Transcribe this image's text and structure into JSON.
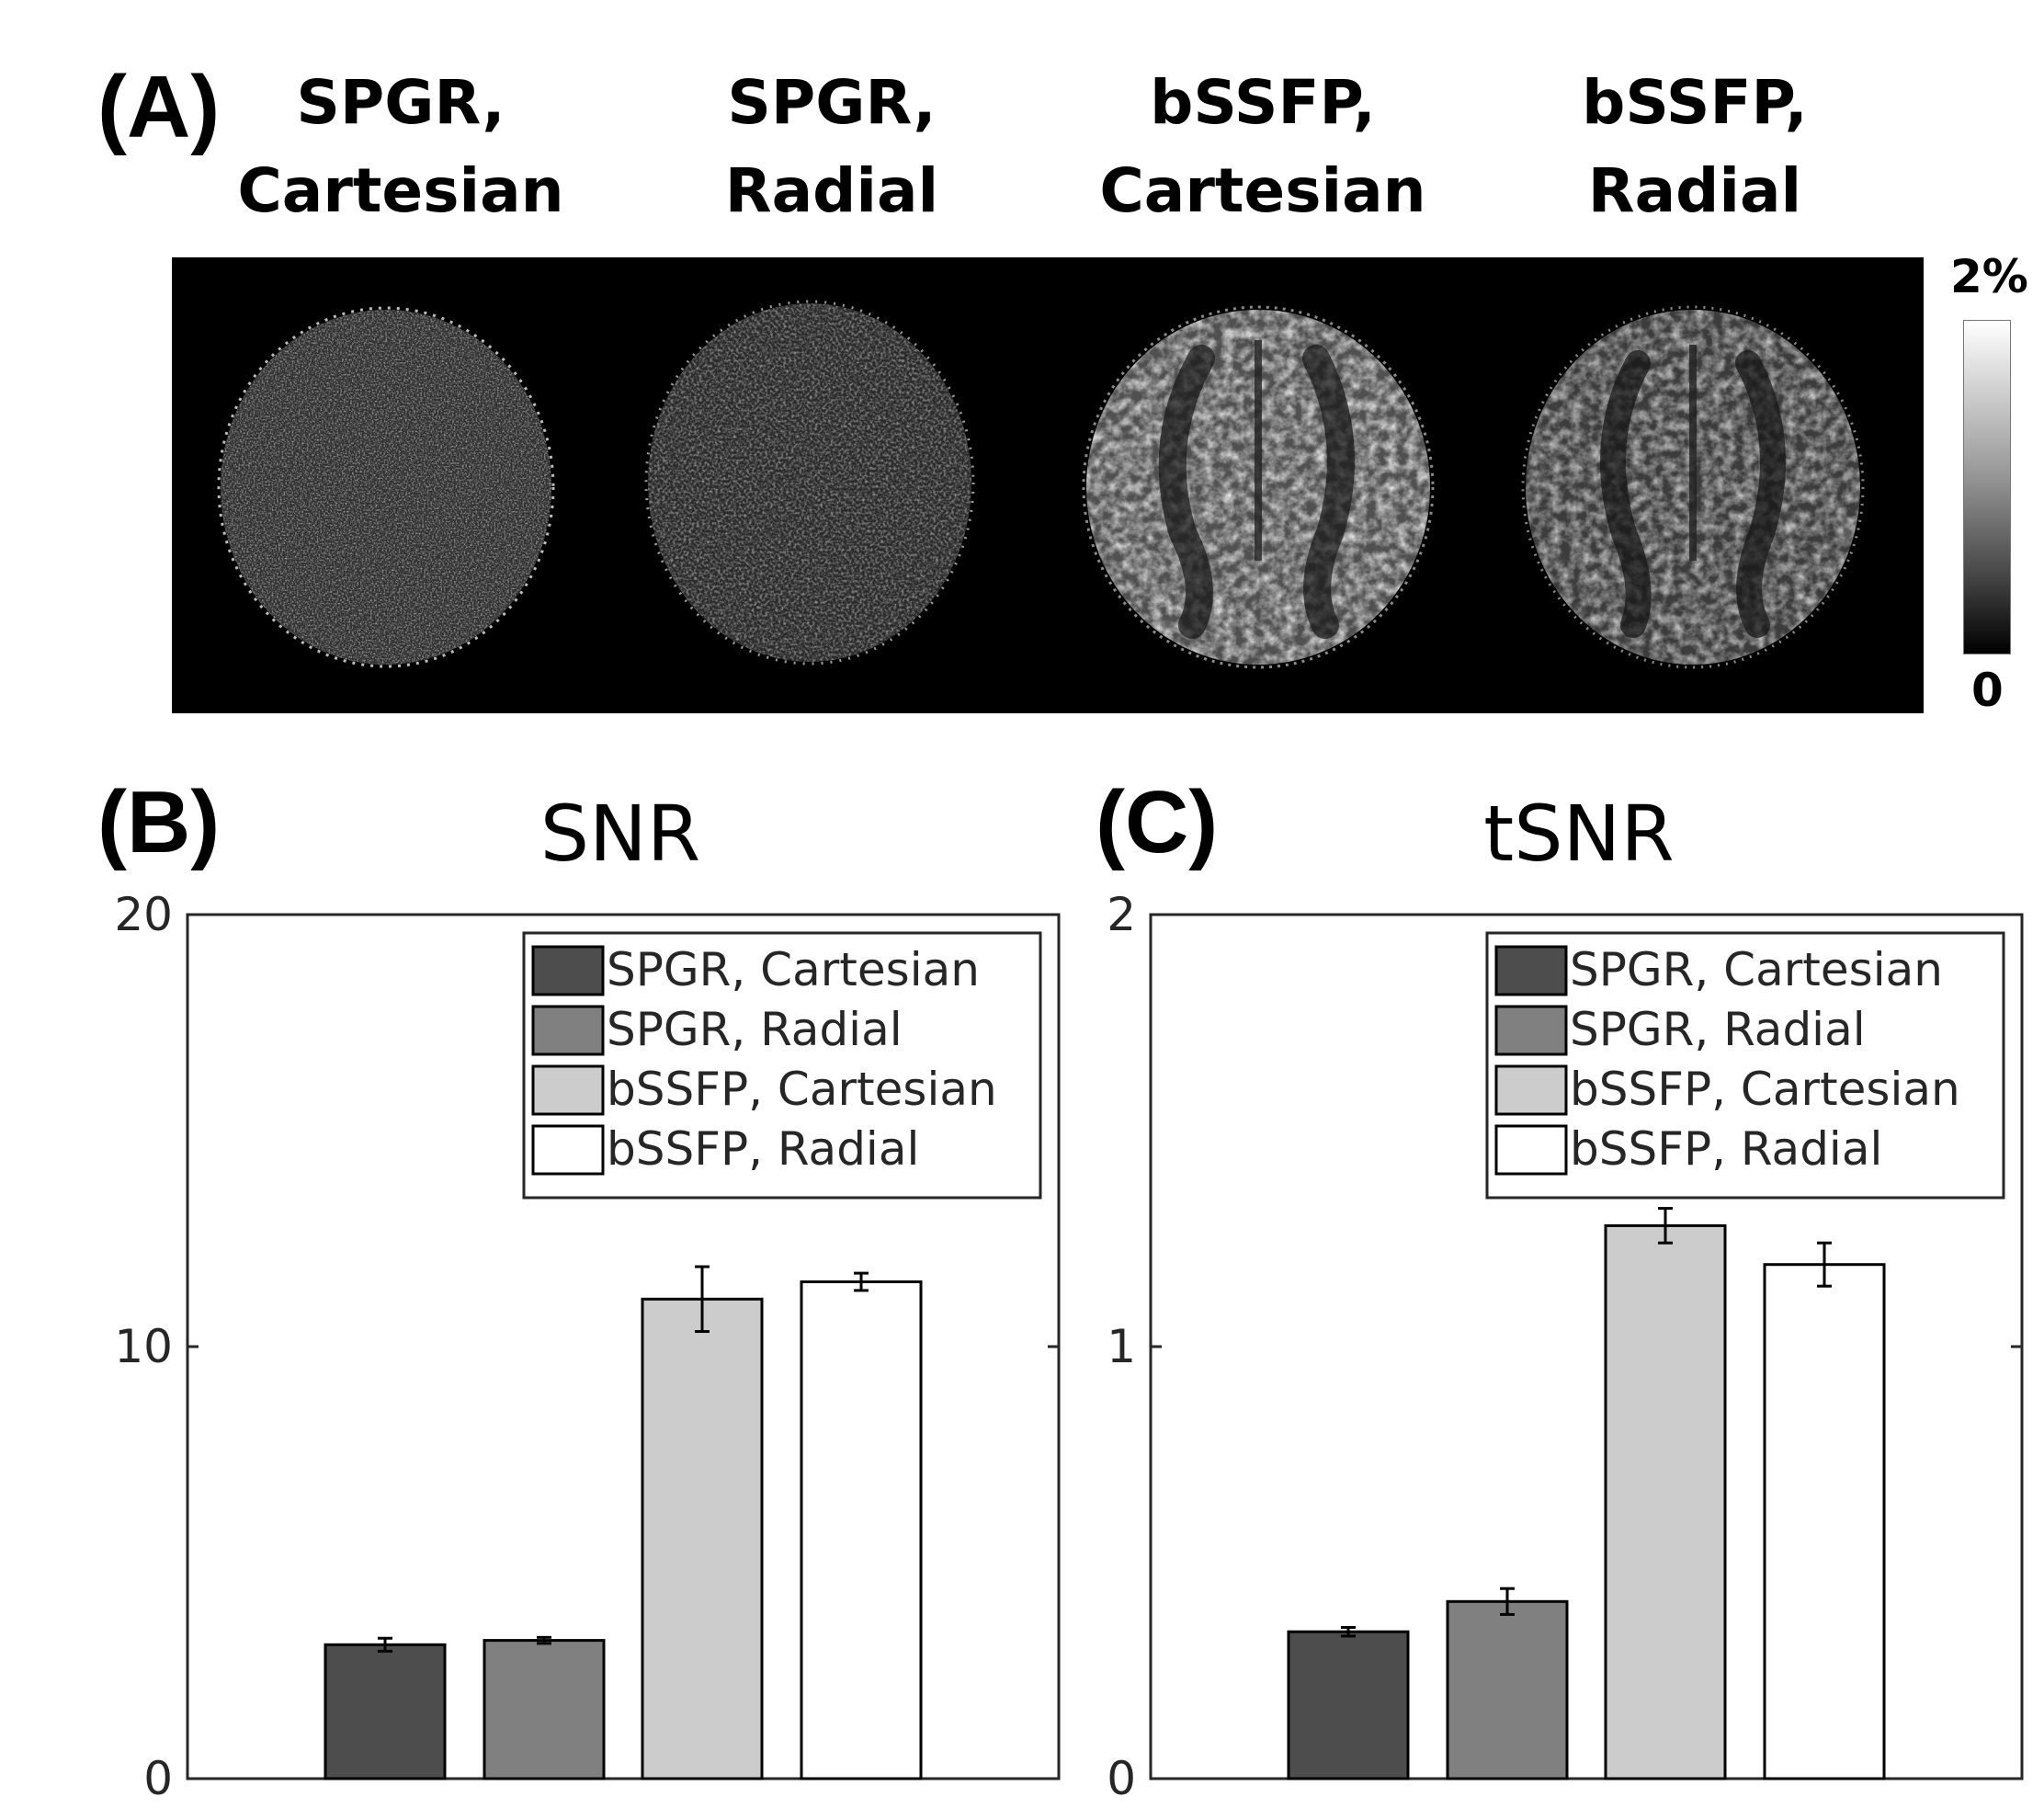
{
  "panel_a": {
    "label": "(A)",
    "columns": [
      {
        "line1": "SPGR,",
        "line2": "Cartesian"
      },
      {
        "line1": "SPGR,",
        "line2": "Radial"
      },
      {
        "line1": "bSSFP,",
        "line2": "Cartesian"
      },
      {
        "line1": "bSSFP,",
        "line2": "Radial"
      }
    ],
    "colorbar": {
      "max_label": "2%",
      "min_label": "0"
    }
  },
  "panel_b": {
    "label": "(B)"
  },
  "panel_c": {
    "label": "(C)"
  },
  "colors": {
    "spgr_cartesian": "#4d4d4d",
    "spgr_radial": "#808080",
    "bssfp_cartesian": "#cccccc",
    "bssfp_radial": "#ffffff"
  },
  "chart_data": [
    {
      "type": "bar",
      "title": "SNR",
      "categories": [
        "SPGR, Cartesian",
        "SPGR, Radial",
        "bSSFP, Cartesian",
        "bSSFP, Radial"
      ],
      "values": [
        3.1,
        3.2,
        11.1,
        11.5
      ],
      "errors": [
        0.15,
        0.07,
        0.75,
        0.2
      ],
      "ylim": [
        0,
        20
      ],
      "yticks": [
        "0",
        "10",
        "20"
      ],
      "legend": [
        "SPGR, Cartesian",
        "SPGR, Radial",
        "bSSFP, Cartesian",
        "bSSFP, Radial"
      ],
      "legend_position": "top-right",
      "xlabel": "",
      "ylabel": ""
    },
    {
      "type": "bar",
      "title": "tSNR",
      "categories": [
        "SPGR, Cartesian",
        "SPGR, Radial",
        "bSSFP, Cartesian",
        "bSSFP, Radial"
      ],
      "values": [
        0.34,
        0.41,
        1.28,
        1.19
      ],
      "errors": [
        0.01,
        0.03,
        0.04,
        0.05
      ],
      "ylim": [
        0,
        2
      ],
      "yticks": [
        "0",
        "1",
        "2"
      ],
      "legend": [
        "SPGR, Cartesian",
        "SPGR, Radial",
        "bSSFP, Cartesian",
        "bSSFP, Radial"
      ],
      "legend_position": "top-right",
      "xlabel": "",
      "ylabel": ""
    }
  ]
}
